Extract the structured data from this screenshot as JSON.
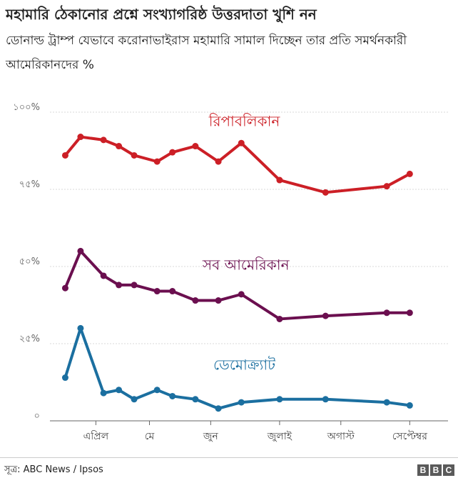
{
  "title": "মহামারি ঠেকানোর প্রশ্নে সংখ্যাগরিষ্ঠ উত্তরদাতা খুশি নন",
  "subtitle": "ডোনাল্ড ট্রাম্প যেভাবে করোনাভাইরাস মহামারি সামাল দিচ্ছেন তার প্রতি সমর্থনকারী আমেরিকানদের %",
  "source": "সূত্র: ABC News / Ipsos",
  "logo": [
    "B",
    "B",
    "C"
  ],
  "colors": {
    "republican": "#cc1f26",
    "all": "#6b0f4f",
    "democrat": "#1b6fa0",
    "grid": "#d9d9d9",
    "axis": "#666666"
  },
  "chart_data": {
    "type": "line",
    "ylim": [
      0,
      100
    ],
    "y_ticks": [
      {
        "value": 0,
        "label": "০"
      },
      {
        "value": 25,
        "label": "২৫%"
      },
      {
        "value": 50,
        "label": "৫০%"
      },
      {
        "value": 75,
        "label": "৭৫%"
      },
      {
        "value": 100,
        "label": "১০০%"
      }
    ],
    "x_ticks": [
      {
        "label": "এপ্রিল",
        "x": 3
      },
      {
        "label": "মে",
        "x": 6.5
      },
      {
        "label": "জুন",
        "x": 10.5
      },
      {
        "label": "জুলাই",
        "x": 15
      },
      {
        "label": "অগাস্ট",
        "x": 19
      },
      {
        "label": "সেপ্টেম্বর",
        "x": 23.5
      }
    ],
    "xlim": [
      0,
      26
    ],
    "x": [
      1,
      2,
      3.5,
      4.5,
      5.5,
      7,
      8,
      9.5,
      11,
      12.5,
      15,
      18,
      22,
      23.5
    ],
    "series": [
      {
        "name": "রিপাবলিকান",
        "color_key": "republican",
        "values": [
          86,
          92,
          91,
          89,
          86,
          84,
          87,
          89,
          84,
          90,
          78,
          74,
          76,
          80
        ]
      },
      {
        "name": "সব আমেরিকান",
        "color_key": "all",
        "values": [
          43,
          55,
          47,
          44,
          44,
          42,
          42,
          39,
          39,
          41,
          33,
          34,
          35,
          35
        ]
      },
      {
        "name": "ডেমোক্র্যাট",
        "color_key": "democrat",
        "values": [
          14,
          30,
          9,
          10,
          7,
          10,
          8,
          7,
          4,
          6,
          7,
          7,
          6,
          5
        ]
      }
    ]
  }
}
